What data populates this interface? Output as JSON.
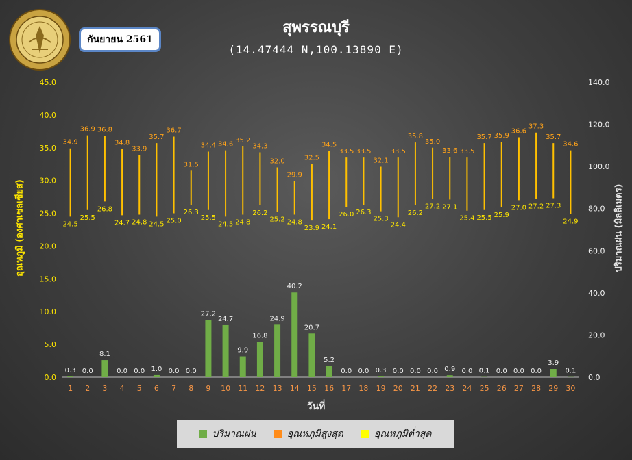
{
  "header": {
    "title": "สุพรรณบุรี",
    "subtitle": "(14.47444 N,100.13890 E)",
    "month": "กันยายน 2561",
    "logo_text": "กรมอุตุนิยมวิทยา METEOROLOGICAL DEPARTMENT"
  },
  "colors": {
    "rain": "#70ad47",
    "tmax": "#ffa31a",
    "tmin": "#ffe600",
    "bar_label": "#f0f0f0",
    "line": "#ffc000"
  },
  "chart_data": {
    "type": "bar",
    "x": [
      1,
      2,
      3,
      4,
      5,
      6,
      7,
      8,
      9,
      10,
      11,
      12,
      13,
      14,
      15,
      16,
      17,
      18,
      19,
      20,
      21,
      22,
      23,
      24,
      25,
      26,
      27,
      28,
      29,
      30
    ],
    "xlabel": "วันที่",
    "ylabel_left": "อุณหภูมิ (องศาเซลเซียส)",
    "ylabel_right": "ปริมาณฝน (มิลลิเมตร)",
    "left_ylim": [
      0,
      45
    ],
    "left_ticks": [
      "0.0",
      "5.0",
      "10.0",
      "15.0",
      "20.0",
      "25.0",
      "30.0",
      "35.0",
      "40.0",
      "45.0"
    ],
    "right_ylim": [
      0,
      140
    ],
    "right_ticks": [
      "0.0",
      "20.0",
      "40.0",
      "60.0",
      "80.0",
      "100.0",
      "120.0",
      "140.0"
    ],
    "series": [
      {
        "name": "ปริมาณฝน",
        "axis": "right",
        "type": "bar",
        "values": [
          0.3,
          0.0,
          8.1,
          0.0,
          0.0,
          1.0,
          0.0,
          0.0,
          27.2,
          24.7,
          9.9,
          16.8,
          24.9,
          40.2,
          20.7,
          5.2,
          0.0,
          0.0,
          0.3,
          0.0,
          0.0,
          0.0,
          0.9,
          0.0,
          0.1,
          0.0,
          0.0,
          0.0,
          3.9,
          0.1
        ]
      },
      {
        "name": "อุณหภูมิสูงสุด",
        "axis": "left",
        "type": "range-top",
        "values": [
          34.9,
          36.9,
          36.8,
          34.8,
          33.9,
          35.7,
          36.7,
          31.5,
          34.4,
          34.6,
          35.2,
          34.3,
          32.0,
          29.9,
          32.5,
          34.5,
          33.5,
          33.5,
          32.1,
          33.5,
          35.8,
          35.0,
          33.6,
          33.5,
          35.7,
          35.9,
          36.6,
          37.3,
          35.7,
          34.6
        ]
      },
      {
        "name": "อุณหภูมิต่ำสุด",
        "axis": "left",
        "type": "range-bottom",
        "values": [
          24.5,
          25.5,
          26.8,
          24.7,
          24.8,
          24.5,
          25.0,
          26.3,
          25.5,
          24.5,
          24.8,
          26.2,
          25.2,
          24.8,
          23.9,
          24.1,
          26.0,
          26.3,
          25.3,
          24.4,
          26.2,
          27.2,
          27.1,
          25.4,
          25.5,
          25.9,
          27.0,
          27.2,
          27.3,
          24.9
        ]
      }
    ],
    "grid": false,
    "legend_position": "bottom"
  }
}
